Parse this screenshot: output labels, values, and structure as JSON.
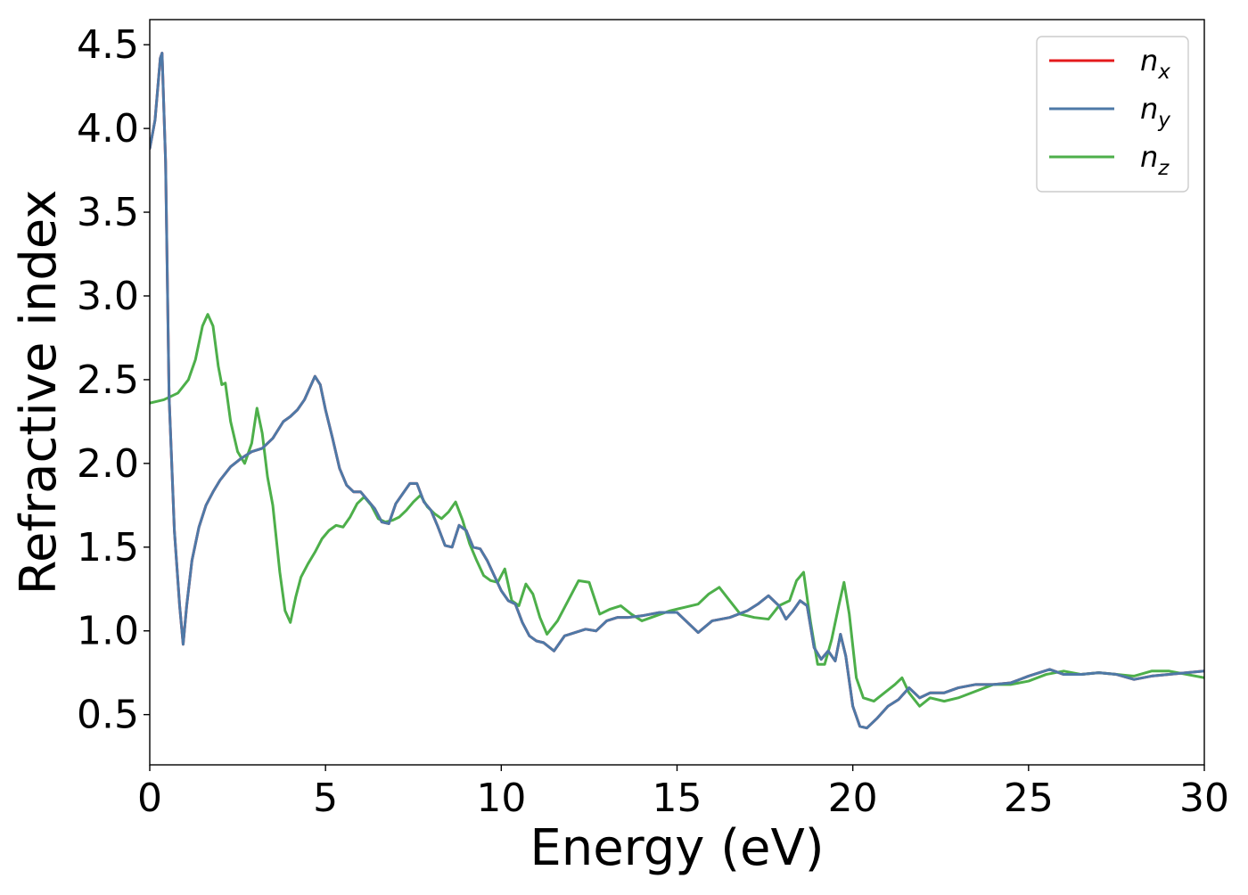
{
  "chart_data": {
    "type": "line",
    "title": "",
    "xlabel": "Energy (eV)",
    "ylabel": "Refractive index",
    "xlim": [
      0,
      30
    ],
    "ylim": [
      0.2,
      4.65
    ],
    "grid": false,
    "legend_position": "top-right",
    "xticks": [
      0,
      5,
      10,
      15,
      20,
      25,
      30
    ],
    "xtick_labels": [
      "0",
      "5",
      "10",
      "15",
      "20",
      "25",
      "30"
    ],
    "yticks": [
      0.5,
      1.0,
      1.5,
      2.0,
      2.5,
      3.0,
      3.5,
      4.0,
      4.5
    ],
    "ytick_labels": [
      "0.5",
      "1.0",
      "1.5",
      "2.0",
      "2.5",
      "3.0",
      "3.5",
      "4.0",
      "4.5"
    ],
    "series": [
      {
        "name": "n_x",
        "legend_base": "n",
        "legend_sub": "x",
        "color": "#e41a1c",
        "x": [
          0,
          0.15,
          0.3,
          0.35,
          0.45,
          0.55,
          0.7,
          0.85,
          0.95,
          1.05,
          1.2,
          1.4,
          1.6,
          1.8,
          2.0,
          2.3,
          2.6,
          2.9,
          3.2,
          3.5,
          3.8,
          4.0,
          4.2,
          4.4,
          4.55,
          4.7,
          4.85,
          5.0,
          5.2,
          5.4,
          5.6,
          5.8,
          6.0,
          6.2,
          6.4,
          6.6,
          6.8,
          7.0,
          7.2,
          7.4,
          7.6,
          7.8,
          8.0,
          8.2,
          8.4,
          8.6,
          8.8,
          9.0,
          9.2,
          9.4,
          9.6,
          9.8,
          10.0,
          10.2,
          10.4,
          10.6,
          10.8,
          11.0,
          11.2,
          11.5,
          11.8,
          12.1,
          12.4,
          12.7,
          13.0,
          13.3,
          13.6,
          14.0,
          14.5,
          15.0,
          15.3,
          15.6,
          16.0,
          16.5,
          17.0,
          17.3,
          17.6,
          17.9,
          18.1,
          18.3,
          18.5,
          18.7,
          18.9,
          19.1,
          19.3,
          19.5,
          19.65,
          19.8,
          20.0,
          20.2,
          20.4,
          20.7,
          21.0,
          21.3,
          21.6,
          21.9,
          22.2,
          22.6,
          23.0,
          23.5,
          24.0,
          24.5,
          25.0,
          25.3,
          25.6,
          26.0,
          26.5,
          27.0,
          27.5,
          28.0,
          28.5,
          29.0,
          29.5,
          30.0
        ],
        "y": [
          3.88,
          4.05,
          4.42,
          4.45,
          3.8,
          2.4,
          1.6,
          1.15,
          0.92,
          1.15,
          1.42,
          1.62,
          1.75,
          1.83,
          1.9,
          1.98,
          2.03,
          2.07,
          2.09,
          2.15,
          2.25,
          2.28,
          2.32,
          2.38,
          2.45,
          2.52,
          2.47,
          2.32,
          2.15,
          1.97,
          1.87,
          1.83,
          1.83,
          1.78,
          1.73,
          1.65,
          1.64,
          1.76,
          1.82,
          1.88,
          1.88,
          1.77,
          1.72,
          1.62,
          1.51,
          1.5,
          1.63,
          1.6,
          1.5,
          1.49,
          1.42,
          1.33,
          1.24,
          1.18,
          1.16,
          1.05,
          0.97,
          0.94,
          0.93,
          0.88,
          0.97,
          0.99,
          1.01,
          1.0,
          1.06,
          1.08,
          1.08,
          1.09,
          1.11,
          1.11,
          1.05,
          0.99,
          1.06,
          1.08,
          1.12,
          1.16,
          1.21,
          1.15,
          1.07,
          1.12,
          1.18,
          1.15,
          0.9,
          0.83,
          0.88,
          0.82,
          0.98,
          0.85,
          0.55,
          0.43,
          0.42,
          0.48,
          0.55,
          0.59,
          0.66,
          0.6,
          0.63,
          0.63,
          0.66,
          0.68,
          0.68,
          0.69,
          0.73,
          0.75,
          0.77,
          0.74,
          0.74,
          0.75,
          0.74,
          0.71,
          0.73,
          0.74,
          0.75,
          0.76
        ]
      },
      {
        "name": "n_y",
        "legend_base": "n",
        "legend_sub": "y",
        "color": "#4e79a7",
        "x": [
          0,
          0.15,
          0.3,
          0.35,
          0.45,
          0.55,
          0.7,
          0.85,
          0.95,
          1.05,
          1.2,
          1.4,
          1.6,
          1.8,
          2.0,
          2.3,
          2.6,
          2.9,
          3.2,
          3.5,
          3.8,
          4.0,
          4.2,
          4.4,
          4.55,
          4.7,
          4.85,
          5.0,
          5.2,
          5.4,
          5.6,
          5.8,
          6.0,
          6.2,
          6.4,
          6.6,
          6.8,
          7.0,
          7.2,
          7.4,
          7.6,
          7.8,
          8.0,
          8.2,
          8.4,
          8.6,
          8.8,
          9.0,
          9.2,
          9.4,
          9.6,
          9.8,
          10.0,
          10.2,
          10.4,
          10.6,
          10.8,
          11.0,
          11.2,
          11.5,
          11.8,
          12.1,
          12.4,
          12.7,
          13.0,
          13.3,
          13.6,
          14.0,
          14.5,
          15.0,
          15.3,
          15.6,
          16.0,
          16.5,
          17.0,
          17.3,
          17.6,
          17.9,
          18.1,
          18.3,
          18.5,
          18.7,
          18.9,
          19.1,
          19.3,
          19.5,
          19.65,
          19.8,
          20.0,
          20.2,
          20.4,
          20.7,
          21.0,
          21.3,
          21.6,
          21.9,
          22.2,
          22.6,
          23.0,
          23.5,
          24.0,
          24.5,
          25.0,
          25.3,
          25.6,
          26.0,
          26.5,
          27.0,
          27.5,
          28.0,
          28.5,
          29.0,
          29.5,
          30.0
        ],
        "y": [
          3.88,
          4.05,
          4.42,
          4.45,
          3.8,
          2.4,
          1.6,
          1.15,
          0.92,
          1.15,
          1.42,
          1.62,
          1.75,
          1.83,
          1.9,
          1.98,
          2.03,
          2.07,
          2.09,
          2.15,
          2.25,
          2.28,
          2.32,
          2.38,
          2.45,
          2.52,
          2.47,
          2.32,
          2.15,
          1.97,
          1.87,
          1.83,
          1.83,
          1.78,
          1.73,
          1.65,
          1.64,
          1.76,
          1.82,
          1.88,
          1.88,
          1.77,
          1.72,
          1.62,
          1.51,
          1.5,
          1.63,
          1.6,
          1.5,
          1.49,
          1.42,
          1.33,
          1.24,
          1.18,
          1.16,
          1.05,
          0.97,
          0.94,
          0.93,
          0.88,
          0.97,
          0.99,
          1.01,
          1.0,
          1.06,
          1.08,
          1.08,
          1.09,
          1.11,
          1.11,
          1.05,
          0.99,
          1.06,
          1.08,
          1.12,
          1.16,
          1.21,
          1.15,
          1.07,
          1.12,
          1.18,
          1.15,
          0.9,
          0.83,
          0.88,
          0.82,
          0.98,
          0.85,
          0.55,
          0.43,
          0.42,
          0.48,
          0.55,
          0.59,
          0.66,
          0.6,
          0.63,
          0.63,
          0.66,
          0.68,
          0.68,
          0.69,
          0.73,
          0.75,
          0.77,
          0.74,
          0.74,
          0.75,
          0.74,
          0.71,
          0.73,
          0.74,
          0.75,
          0.76
        ]
      },
      {
        "name": "n_z",
        "legend_base": "n",
        "legend_sub": "z",
        "color": "#4daf4a",
        "x": [
          0,
          0.4,
          0.8,
          1.1,
          1.3,
          1.5,
          1.65,
          1.8,
          1.95,
          2.05,
          2.15,
          2.3,
          2.5,
          2.7,
          2.9,
          3.05,
          3.2,
          3.35,
          3.5,
          3.7,
          3.85,
          4.0,
          4.15,
          4.3,
          4.5,
          4.7,
          4.9,
          5.1,
          5.3,
          5.5,
          5.7,
          5.9,
          6.1,
          6.3,
          6.5,
          6.7,
          6.9,
          7.1,
          7.3,
          7.5,
          7.7,
          7.9,
          8.1,
          8.3,
          8.5,
          8.7,
          8.9,
          9.1,
          9.3,
          9.5,
          9.7,
          9.9,
          10.1,
          10.3,
          10.5,
          10.7,
          10.9,
          11.1,
          11.3,
          11.6,
          11.9,
          12.2,
          12.5,
          12.8,
          13.1,
          13.4,
          13.7,
          14.0,
          14.4,
          14.8,
          15.2,
          15.6,
          15.9,
          16.2,
          16.5,
          16.8,
          17.2,
          17.6,
          17.9,
          18.2,
          18.4,
          18.6,
          18.8,
          19.0,
          19.2,
          19.4,
          19.6,
          19.75,
          19.9,
          20.1,
          20.3,
          20.6,
          20.9,
          21.2,
          21.4,
          21.6,
          21.9,
          22.2,
          22.6,
          23.0,
          23.5,
          24.0,
          24.5,
          25.0,
          25.5,
          26.0,
          26.5,
          27.0,
          27.5,
          28.0,
          28.5,
          29.0,
          29.5,
          30.0
        ],
        "y": [
          2.36,
          2.38,
          2.42,
          2.5,
          2.62,
          2.82,
          2.89,
          2.82,
          2.58,
          2.47,
          2.48,
          2.25,
          2.07,
          2.0,
          2.12,
          2.33,
          2.18,
          1.92,
          1.75,
          1.35,
          1.12,
          1.05,
          1.2,
          1.32,
          1.4,
          1.47,
          1.55,
          1.6,
          1.63,
          1.62,
          1.68,
          1.76,
          1.8,
          1.75,
          1.67,
          1.65,
          1.66,
          1.68,
          1.72,
          1.77,
          1.81,
          1.74,
          1.7,
          1.67,
          1.71,
          1.77,
          1.66,
          1.52,
          1.42,
          1.33,
          1.3,
          1.29,
          1.37,
          1.18,
          1.15,
          1.28,
          1.22,
          1.08,
          0.98,
          1.06,
          1.18,
          1.3,
          1.29,
          1.1,
          1.13,
          1.15,
          1.1,
          1.06,
          1.09,
          1.12,
          1.14,
          1.16,
          1.22,
          1.26,
          1.18,
          1.1,
          1.08,
          1.07,
          1.15,
          1.18,
          1.3,
          1.35,
          1.05,
          0.8,
          0.8,
          0.95,
          1.15,
          1.29,
          1.1,
          0.72,
          0.6,
          0.58,
          0.63,
          0.68,
          0.72,
          0.63,
          0.55,
          0.6,
          0.58,
          0.6,
          0.64,
          0.68,
          0.68,
          0.7,
          0.74,
          0.76,
          0.74,
          0.75,
          0.74,
          0.73,
          0.76,
          0.76,
          0.74,
          0.72
        ]
      }
    ]
  }
}
